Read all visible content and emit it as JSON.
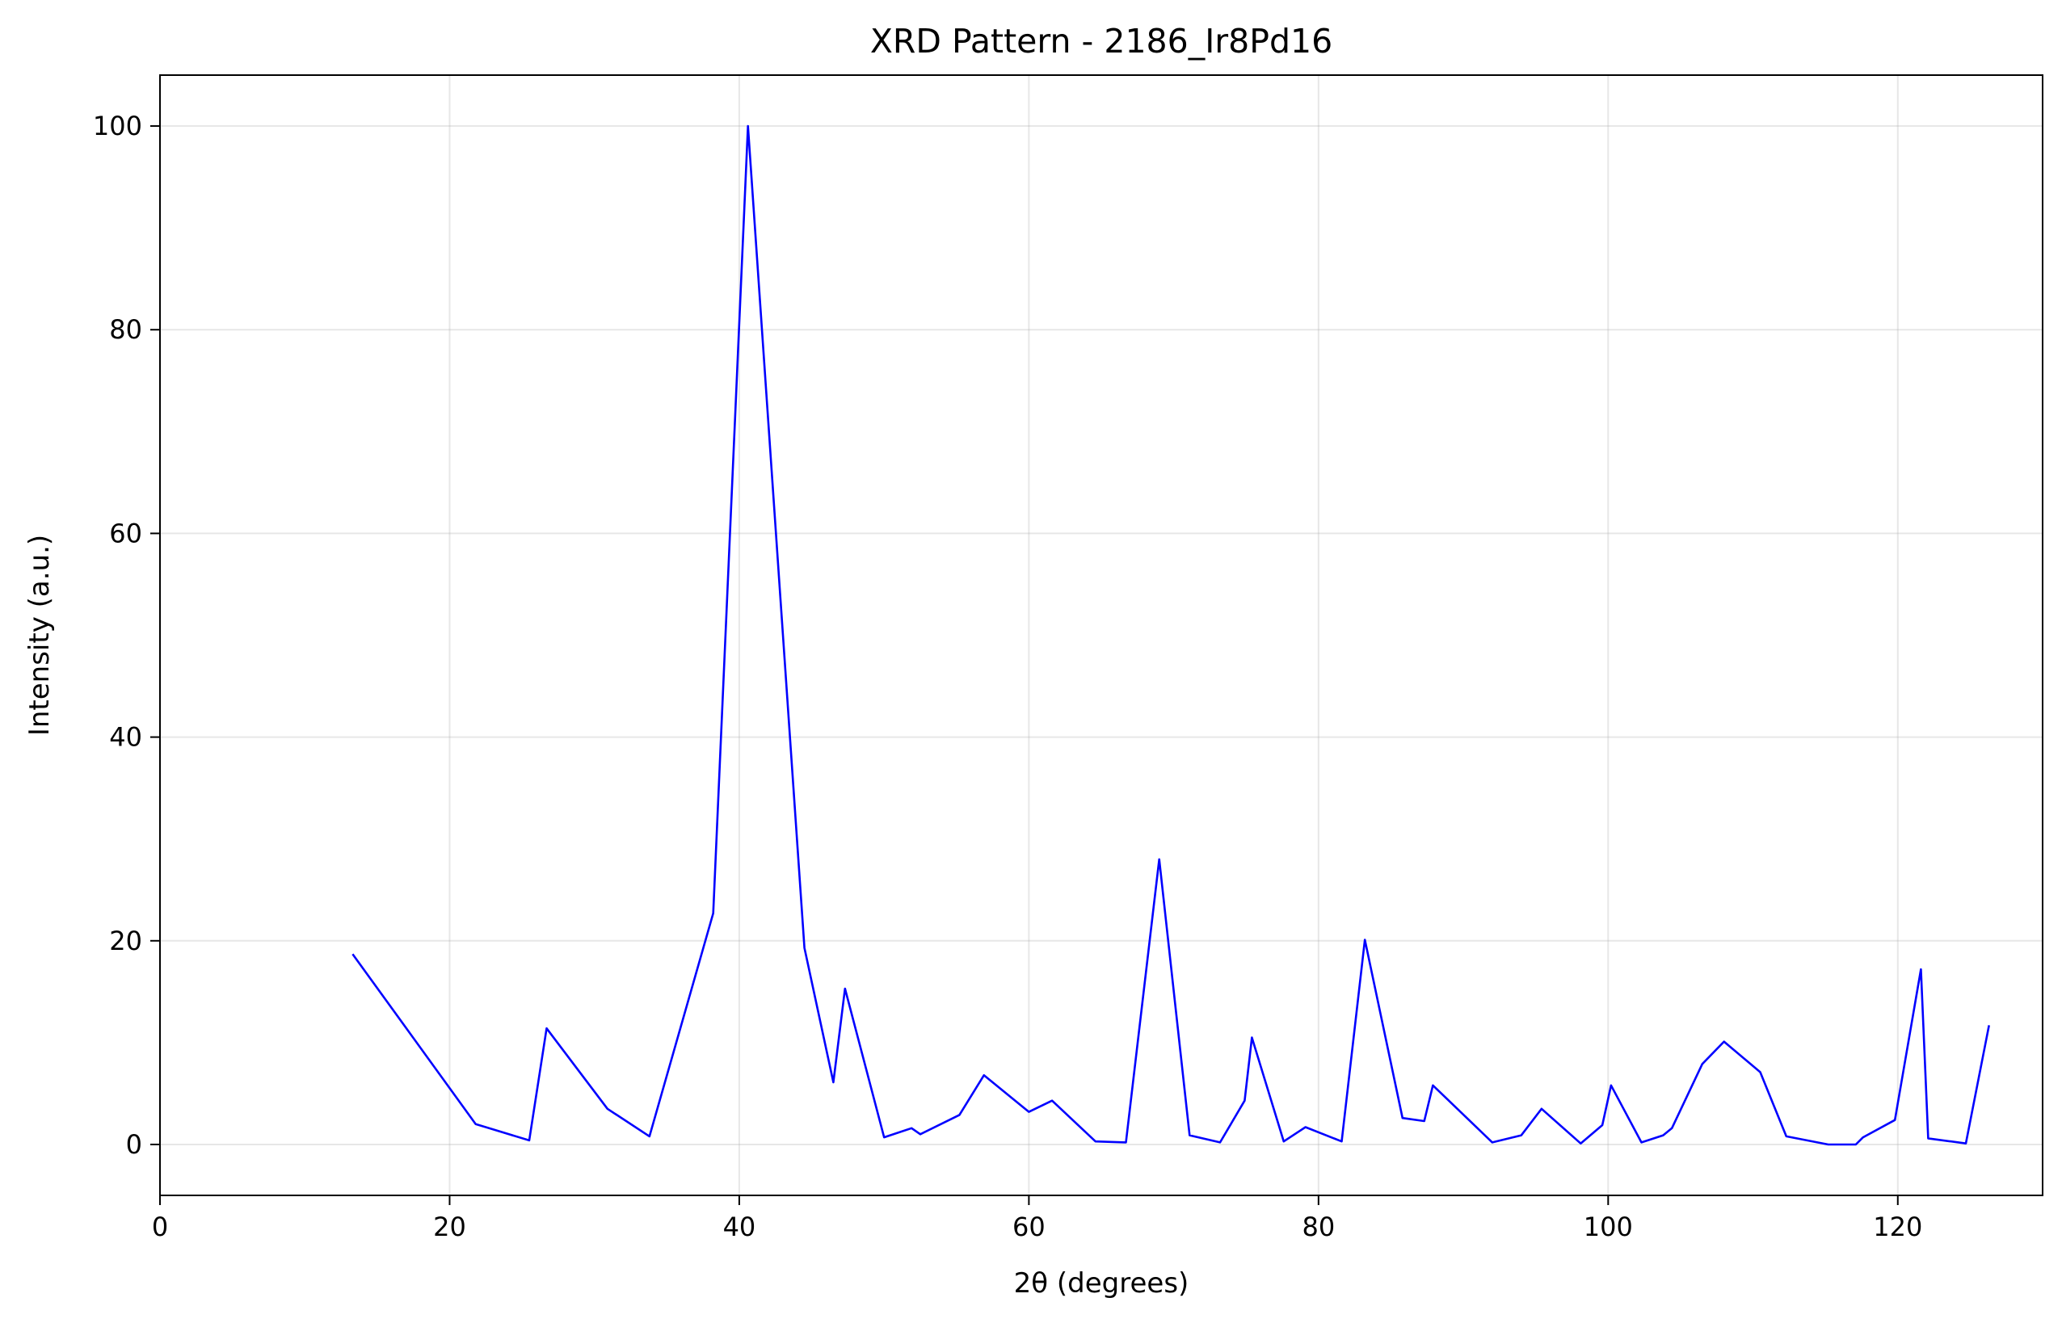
{
  "chart_data": {
    "type": "line",
    "title": "XRD Pattern - 2186_Ir8Pd16",
    "xlabel": "2θ (degrees)",
    "ylabel": "Intensity (a.u.)",
    "xlim": [
      0,
      130
    ],
    "ylim": [
      -5,
      105
    ],
    "xticks": [
      0,
      20,
      40,
      60,
      80,
      100,
      120
    ],
    "yticks": [
      0,
      20,
      40,
      60,
      80,
      100
    ],
    "grid": true,
    "line_color": "#0000ff",
    "x": [
      13.3,
      21.8,
      25.5,
      26.7,
      30.9,
      33.8,
      38.2,
      40.6,
      44.5,
      46.5,
      47.3,
      50.0,
      51.9,
      52.5,
      55.2,
      56.9,
      60.0,
      61.6,
      64.6,
      66.7,
      69.0,
      71.1,
      73.2,
      74.9,
      75.4,
      77.6,
      79.1,
      81.6,
      83.2,
      85.8,
      87.3,
      87.9,
      92.0,
      94.0,
      95.4,
      98.1,
      99.6,
      100.2,
      102.3,
      103.8,
      104.4,
      106.5,
      108.0,
      110.5,
      112.3,
      115.2,
      117.1,
      117.6,
      119.8,
      121.6,
      122.1,
      124.7,
      126.3
    ],
    "y": [
      18.7,
      2.0,
      0.4,
      11.4,
      3.5,
      0.8,
      22.7,
      100.0,
      19.3,
      6.1,
      15.3,
      0.7,
      1.6,
      1.0,
      2.9,
      6.8,
      3.2,
      4.3,
      0.3,
      0.2,
      28.0,
      0.9,
      0.2,
      4.3,
      10.5,
      0.3,
      1.7,
      0.3,
      20.1,
      2.6,
      2.3,
      5.8,
      0.2,
      0.9,
      3.5,
      0.1,
      1.9,
      5.8,
      0.2,
      0.9,
      1.6,
      7.9,
      10.1,
      7.1,
      0.8,
      0.0,
      0.0,
      0.7,
      2.4,
      17.2,
      0.6,
      0.1,
      11.7
    ]
  }
}
